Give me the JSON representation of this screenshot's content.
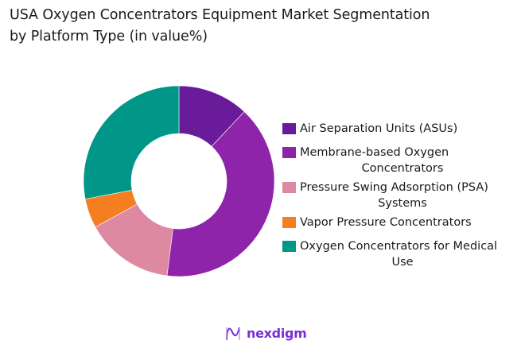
{
  "title": {
    "line1": "USA Oxygen Concentrators Equipment Market Segmentation",
    "line2": "by Platform Type (in value%)"
  },
  "chart_data": {
    "type": "pie",
    "subtype": "donut",
    "title": "USA Oxygen Concentrators Equipment Market Segmentation by Platform Type (in value%)",
    "categories": [
      "Air Separation Units (ASUs)",
      "Membrane-based Oxygen Concentrators",
      "Pressure Swing Adsorption (PSA) Systems",
      "Vapor Pressure Concentrators",
      "Oxygen Concentrators for Medical Use"
    ],
    "values": [
      12,
      40,
      15,
      5,
      28
    ],
    "colors": [
      "#6a1b9a",
      "#8e24aa",
      "#de89a2",
      "#f47f20",
      "#009688"
    ],
    "legend_position": "right",
    "start_angle": "top, clockwise"
  },
  "legend": [
    {
      "line1": "Air Separation Units (ASUs)",
      "line2": "",
      "color": "#6a1b9a"
    },
    {
      "line1": "Membrane-based Oxygen",
      "line2": "Concentrators",
      "color": "#8e24aa"
    },
    {
      "line1": "Pressure Swing Adsorption (PSA)",
      "line2": "Systems",
      "color": "#de89a2"
    },
    {
      "line1": "Vapor Pressure Concentrators",
      "line2": "",
      "color": "#f47f20"
    },
    {
      "line1": "Oxygen Concentrators for Medical",
      "line2": "Use",
      "color": "#009688"
    }
  ],
  "brand": {
    "name": "nexdigm",
    "color": "#7a2ed6"
  }
}
